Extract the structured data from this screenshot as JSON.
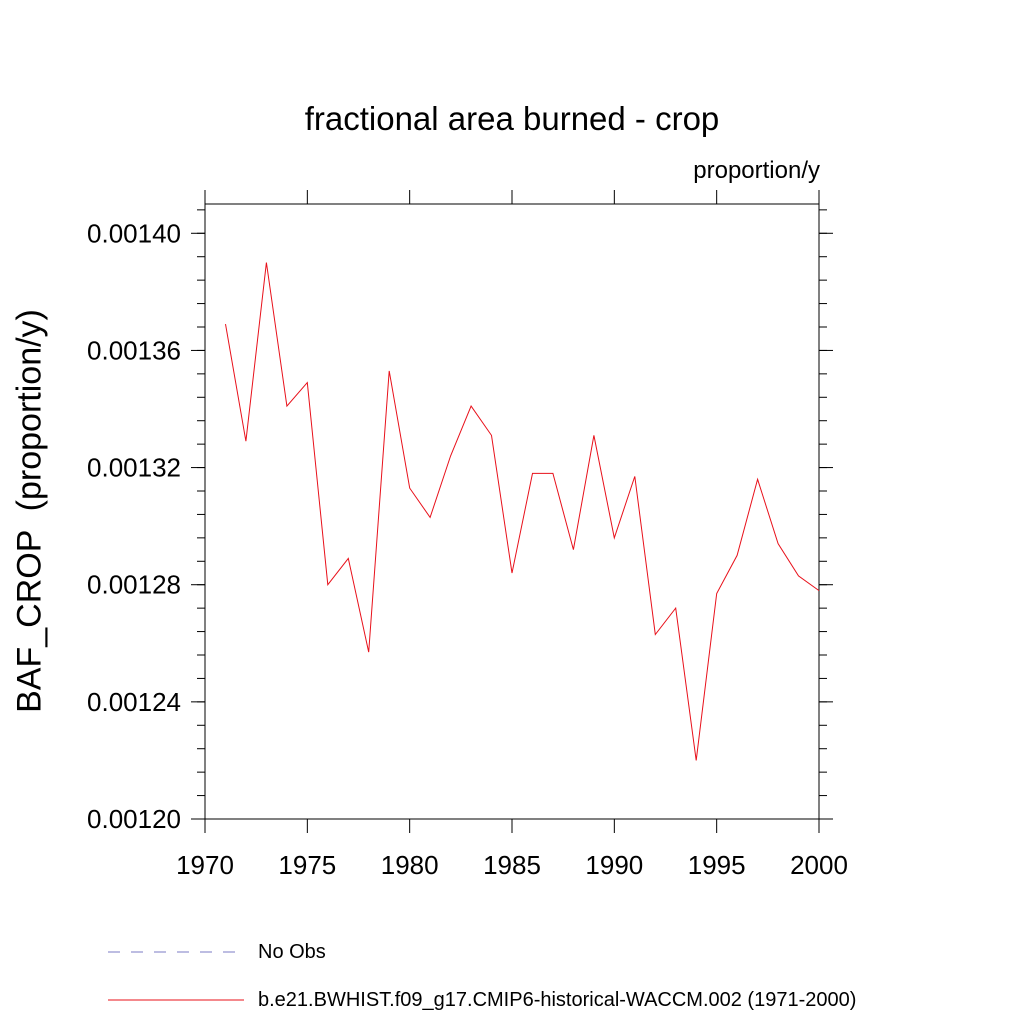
{
  "chart_data": {
    "type": "line",
    "title": "fractional area burned - crop",
    "units_label": "proportion/y",
    "ylabel": "BAF_CROP  (proportion/y)",
    "xlabel": "",
    "xlim": [
      1970,
      2000
    ],
    "ylim": [
      0.0012,
      0.00141
    ],
    "x_ticks": [
      "1970",
      "1975",
      "1980",
      "1985",
      "1990",
      "1995",
      "2000"
    ],
    "y_ticks": [
      "0.00120",
      "0.00124",
      "0.00128",
      "0.00132",
      "0.00136",
      "0.00140"
    ],
    "grid": false,
    "legend_position": "bottom",
    "series": [
      {
        "name": "b.e21.BWHIST.f09_g17.CMIP6-historical-WACCM.002 (1971-2000)",
        "color": "#e8101a",
        "style": "solid",
        "x": [
          1971,
          1972,
          1973,
          1974,
          1975,
          1976,
          1977,
          1978,
          1979,
          1980,
          1981,
          1982,
          1983,
          1984,
          1985,
          1986,
          1987,
          1988,
          1989,
          1990,
          1991,
          1992,
          1993,
          1994,
          1995,
          1996,
          1997,
          1998,
          1999,
          2000
        ],
        "y": [
          0.001369,
          0.001329,
          0.00139,
          0.001341,
          0.001349,
          0.00128,
          0.001289,
          0.001257,
          0.001353,
          0.001313,
          0.001303,
          0.001324,
          0.001341,
          0.001331,
          0.001284,
          0.001318,
          0.001318,
          0.001292,
          0.001331,
          0.001296,
          0.001317,
          0.001263,
          0.001272,
          0.00122,
          0.001277,
          0.00129,
          0.001316,
          0.001294,
          0.001283,
          0.001278
        ]
      }
    ],
    "legend": [
      {
        "label": "No Obs",
        "color": "#7b7bc6",
        "style": "dashed"
      },
      {
        "label": "b.e21.BWHIST.f09_g17.CMIP6-historical-WACCM.002 (1971-2000)",
        "color": "#e8101a",
        "style": "solid"
      }
    ]
  }
}
